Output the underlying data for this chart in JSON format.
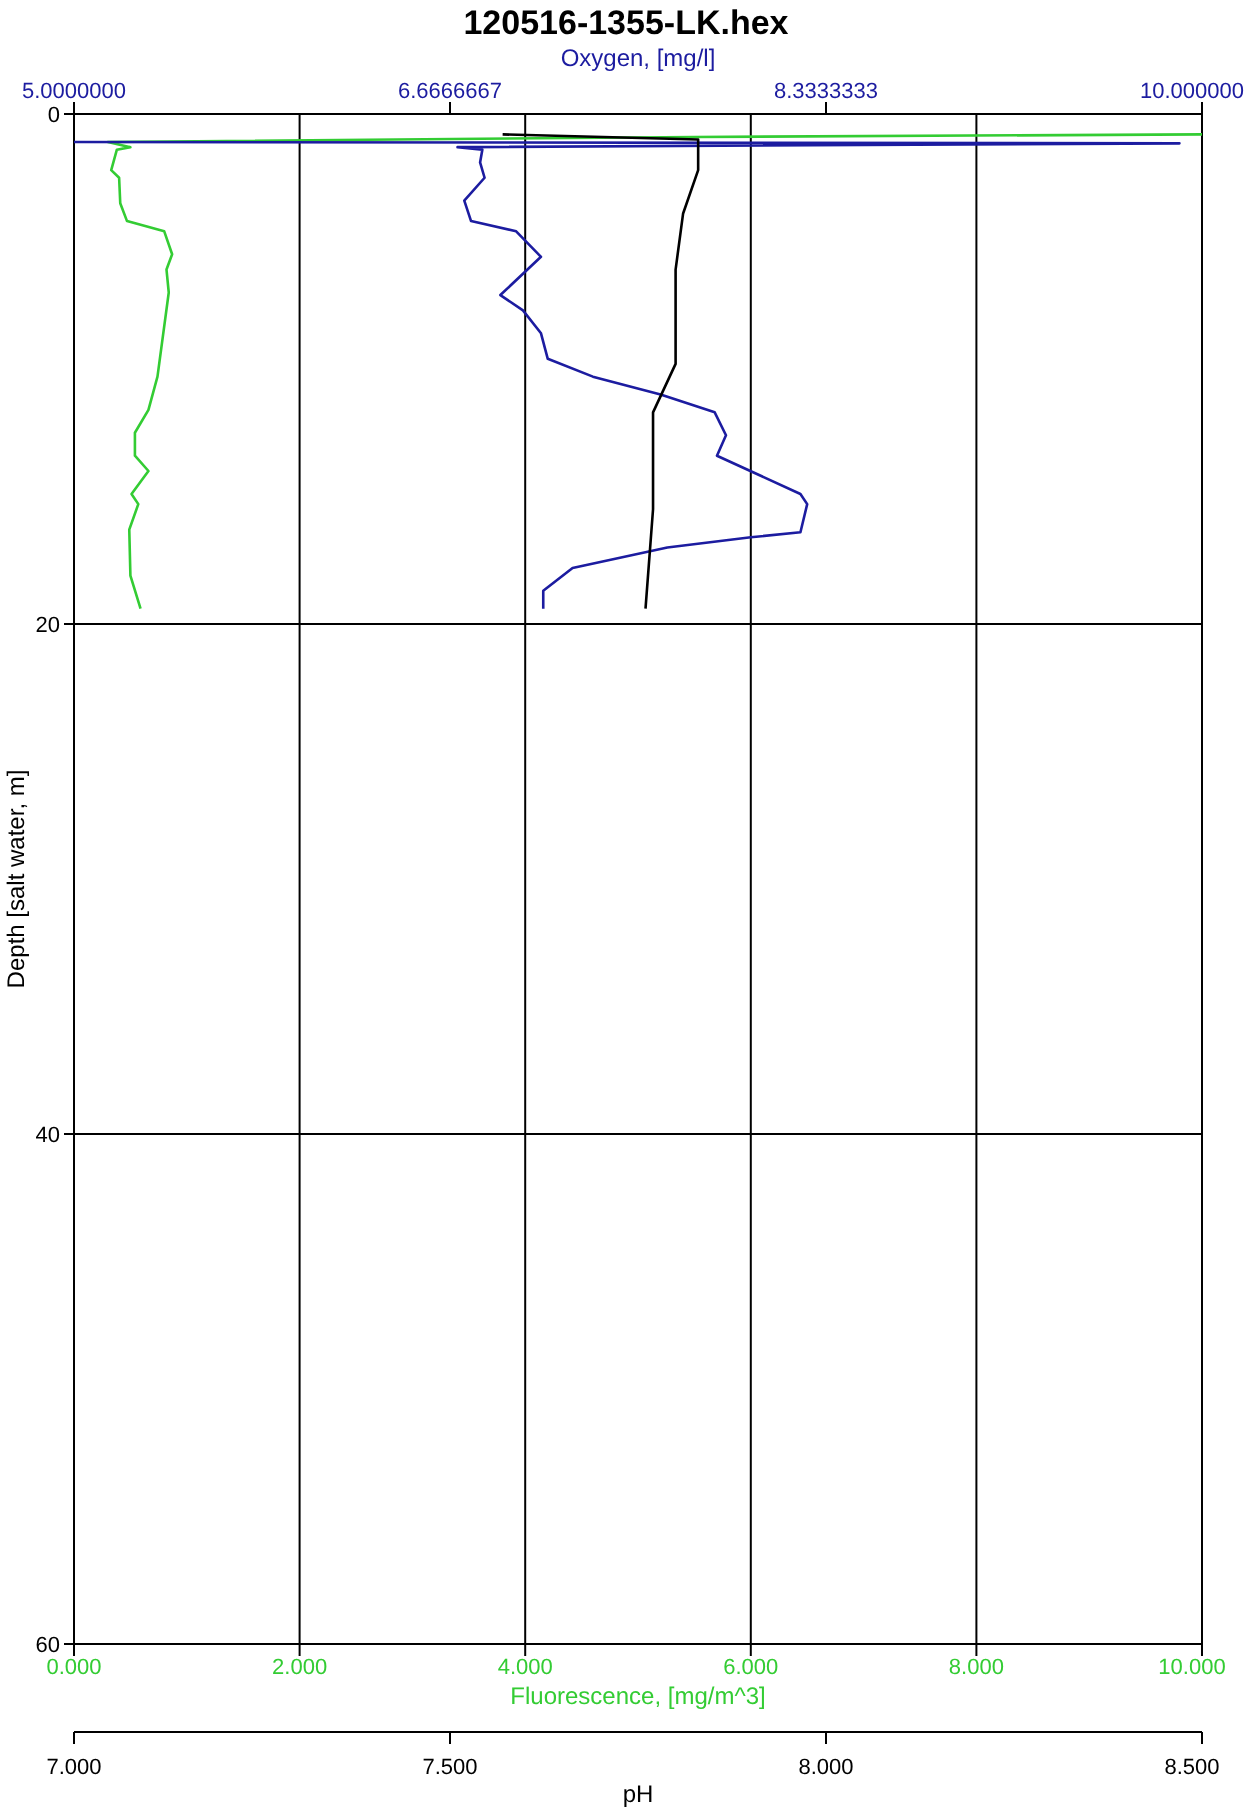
{
  "chart_data": [
    {
      "type": "line",
      "title": "120516-1355-LK.hex",
      "xlabel": "Fluorescence, [mg/m^3]",
      "xlim": [
        0,
        10
      ],
      "xticks": [
        {
          "value": 0,
          "label": "0.000"
        },
        {
          "value": 2,
          "label": "2.000"
        },
        {
          "value": 4,
          "label": "4.000"
        },
        {
          "value": 6,
          "label": "6.000"
        },
        {
          "value": 8,
          "label": "8.000"
        },
        {
          "value": 10,
          "label": "10.000"
        }
      ],
      "x2label": "Oxygen, [mg/l]",
      "x2lim": [
        5,
        10
      ],
      "x2ticks": [
        {
          "value": 5,
          "label": "5.0000000"
        },
        {
          "value": 6.6666667,
          "label": "6.6666667"
        },
        {
          "value": 8.3333333,
          "label": "8.3333333"
        },
        {
          "value": 10,
          "label": "10.000000"
        }
      ],
      "ylabel": "Depth [salt water, m]",
      "ylim": [
        60,
        0
      ],
      "yticks": [
        0,
        20,
        40,
        60
      ],
      "grid": true,
      "marker": "none",
      "line_style": "solid",
      "series": [
        {
          "color": "#33cc33",
          "x": [
            10,
            5.5,
            0.3,
            0.5,
            0.38,
            0.33,
            0.4,
            0.41,
            0.47,
            0.8,
            0.87,
            0.82,
            0.84,
            0.74,
            0.66,
            0.54,
            0.54,
            0.66,
            0.51,
            0.57,
            0.49,
            0.5,
            0.59
          ],
          "values": [
            0.8,
            0.9,
            1.1,
            1.3,
            1.4,
            2.2,
            2.5,
            3.5,
            4.2,
            4.6,
            5.5,
            6.1,
            7.0,
            10.3,
            11.6,
            12.5,
            13.4,
            14.0,
            14.9,
            15.3,
            16.3,
            18.1,
            19.4
          ]
        },
        {
          "axis": "x2",
          "color": "#1c1ca0",
          "x": [
            5.0,
            9.9,
            6.7,
            6.81,
            6.8,
            6.82,
            6.73,
            6.76,
            6.96,
            7.07,
            6.89,
            6.99,
            7.07,
            7.1,
            7.3,
            7.6,
            7.84,
            7.89,
            7.85,
            8.22,
            8.25,
            8.22,
            8.0,
            7.63,
            7.21,
            7.08,
            7.08
          ],
          "values": [
            1.1,
            1.15,
            1.3,
            1.4,
            1.9,
            2.5,
            3.4,
            4.2,
            4.6,
            5.6,
            7.1,
            7.7,
            8.6,
            9.6,
            10.3,
            11.0,
            11.7,
            12.6,
            13.4,
            14.9,
            15.3,
            16.4,
            16.6,
            17.0,
            17.8,
            18.7,
            19.4
          ]
        }
      ]
    },
    {
      "type": "line",
      "xlabel": "pH",
      "xlim": [
        7,
        8.5
      ],
      "xticks": [
        {
          "value": 7,
          "label": "7.000"
        },
        {
          "value": 7.5,
          "label": "7.500"
        },
        {
          "value": 8,
          "label": "8.000"
        },
        {
          "value": 8.5,
          "label": "8.500"
        }
      ],
      "ylim": [
        60,
        0
      ],
      "tick_labels": "x",
      "marker": "none",
      "line_style": "solid",
      "series": [
        {
          "color": "#000000",
          "x": [
            7.57,
            7.83,
            7.83,
            7.83,
            7.81,
            7.8,
            7.8,
            7.77,
            7.77,
            7.76
          ],
          "values": [
            0.8,
            1.0,
            1.2,
            2.2,
            3.9,
            6.1,
            9.8,
            11.7,
            15.5,
            19.4
          ]
        }
      ]
    }
  ]
}
